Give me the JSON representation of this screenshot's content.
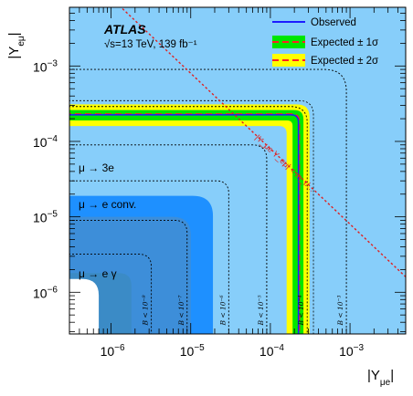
{
  "chart_data": {
    "type": "contour",
    "xlabel": "|Y_μe|",
    "ylabel": "|Y_eμ|",
    "x_scale": "log",
    "y_scale": "log",
    "xlim": [
      3e-07,
      0.005
    ],
    "ylim": [
      2.8e-07,
      0.006
    ],
    "x_ticks": [
      {
        "value": 1e-06,
        "base": "10",
        "exp": "−6"
      },
      {
        "value": 1e-05,
        "base": "10",
        "exp": "−5"
      },
      {
        "value": 0.0001,
        "base": "10",
        "exp": "−4"
      },
      {
        "value": 0.001,
        "base": "10",
        "exp": "−3"
      }
    ],
    "y_ticks": [
      {
        "value": 1e-06,
        "base": "10",
        "exp": "−6"
      },
      {
        "value": 1e-05,
        "base": "10",
        "exp": "−5"
      },
      {
        "value": 0.0001,
        "base": "10",
        "exp": "−4"
      },
      {
        "value": 0.001,
        "base": "10",
        "exp": "−3"
      }
    ],
    "experiment": "ATLAS",
    "energy_lumi": "√s=13 TeV, 139 fb⁻¹",
    "legend": [
      {
        "label": "Observed",
        "style": "observed"
      },
      {
        "label": "Expected ± 1σ",
        "style": "exp1"
      },
      {
        "label": "Expected ± 2σ",
        "style": "exp2"
      }
    ],
    "regions": [
      {
        "label": "μ → 3e",
        "limit": 1.9e-05,
        "color": "#1e90ff"
      },
      {
        "label": "μ → e conv.",
        "limit": 1e-05,
        "color": "#3d8ed9"
      },
      {
        "label": "μ → e γ",
        "limit": 1.8e-06,
        "color": "#3b8bc6"
      }
    ],
    "observed_limit": 0.000225,
    "expected_limit": 0.00023,
    "band_1sigma": [
      0.00019,
      0.00026
    ],
    "band_2sigma": [
      0.00016,
      0.00031
    ],
    "br_contours": [
      {
        "label": "B < 10⁻⁹",
        "limit": 3.2e-06
      },
      {
        "label": "B < 10⁻⁷",
        "limit": 9e-06
      },
      {
        "label": "B < 10⁻⁶",
        "limit": 3e-05
      },
      {
        "label": "B < 10⁻⁵",
        "limit": 9e-05
      },
      {
        "label": "B < 10⁻⁴",
        "limit": 0.00029
      },
      {
        "label": "B < 10⁻³",
        "limit": 0.0009
      }
    ],
    "diagonal_label": "|Y_μe Y_eμ| < m_τ/...",
    "diagonal_product": 8e-09,
    "colors": {
      "background": "#87cefa",
      "observed": "#1c1cff",
      "expected": "#ff2020",
      "band1": "#00e600",
      "band2": "#ffff00",
      "diagonal": "#e02020",
      "contour": "#000000"
    }
  }
}
